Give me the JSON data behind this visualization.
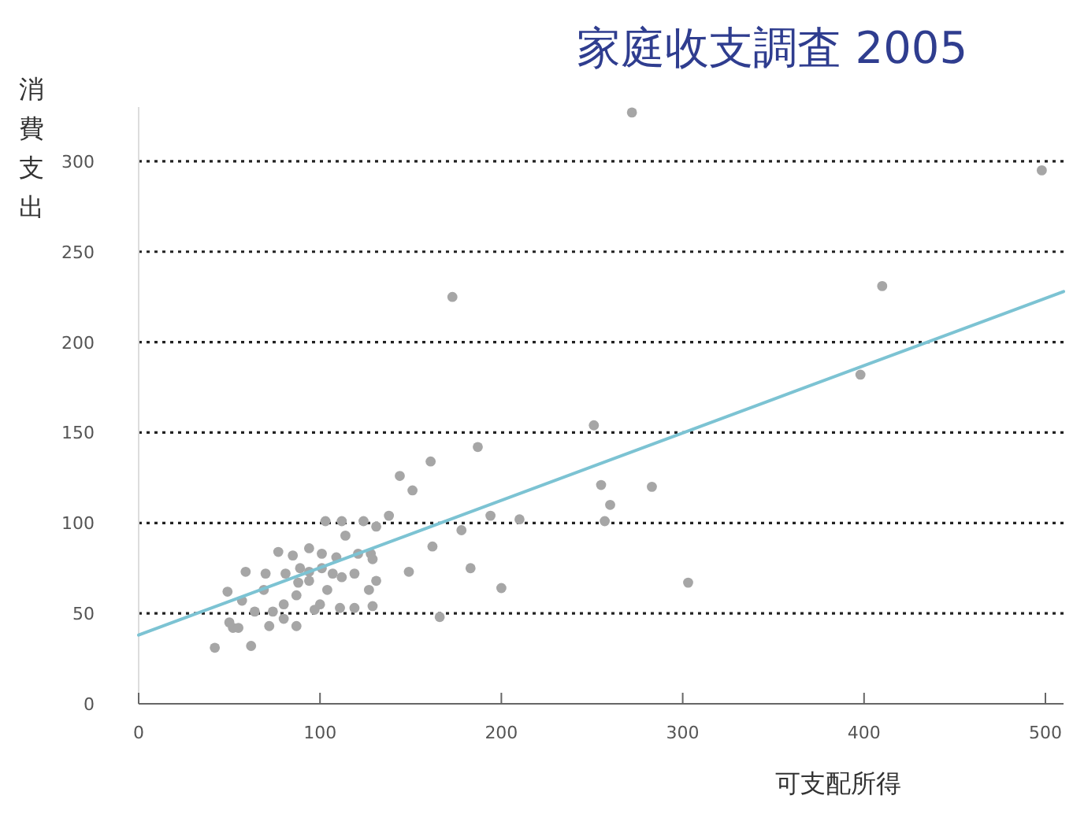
{
  "chart_data": {
    "type": "scatter",
    "title": "家庭收支調査 2005",
    "xlabel": "可支配所得",
    "ylabel": "消費支出",
    "xlim": [
      0,
      510
    ],
    "ylim": [
      0,
      330
    ],
    "xticks": [
      0,
      100,
      200,
      300,
      400,
      500
    ],
    "yticks": [
      0,
      50,
      100,
      150,
      200,
      250,
      300
    ],
    "grid": "y",
    "series": [
      {
        "marker": "circle",
        "color": "#a6a6a6",
        "x": [
          272,
          498,
          410,
          398,
          173,
          251,
          187,
          161,
          144,
          151,
          255,
          283,
          260,
          257,
          194,
          210,
          178,
          162,
          183,
          200,
          303,
          166,
          138,
          131,
          124,
          112,
          103,
          114,
          149,
          129,
          119,
          111,
          131,
          127,
          119,
          77,
          85,
          94,
          101,
          109,
          121,
          128,
          129,
          59,
          70,
          81,
          89,
          94,
          101,
          107,
          112,
          88,
          94,
          104,
          49,
          69,
          57,
          64,
          74,
          80,
          87,
          80,
          72,
          87,
          100,
          97,
          52,
          50,
          42,
          62,
          55
        ],
        "values": [
          327,
          295,
          231,
          182,
          225,
          154,
          142,
          134,
          126,
          118,
          121,
          120,
          110,
          101,
          104,
          102,
          96,
          87,
          75,
          64,
          67,
          48,
          104,
          98,
          101,
          101,
          101,
          93,
          73,
          54,
          53,
          53,
          68,
          63,
          72,
          84,
          82,
          86,
          83,
          81,
          83,
          83,
          80,
          73,
          72,
          72,
          75,
          73,
          75,
          72,
          70,
          67,
          68,
          63,
          62,
          63,
          57,
          51,
          51,
          55,
          60,
          47,
          43,
          43,
          55,
          52,
          42,
          45,
          31,
          32,
          42
        ]
      },
      {
        "type": "line",
        "color": "#7cc3d3",
        "x": [
          0,
          510
        ],
        "values": [
          38,
          228
        ]
      }
    ]
  }
}
